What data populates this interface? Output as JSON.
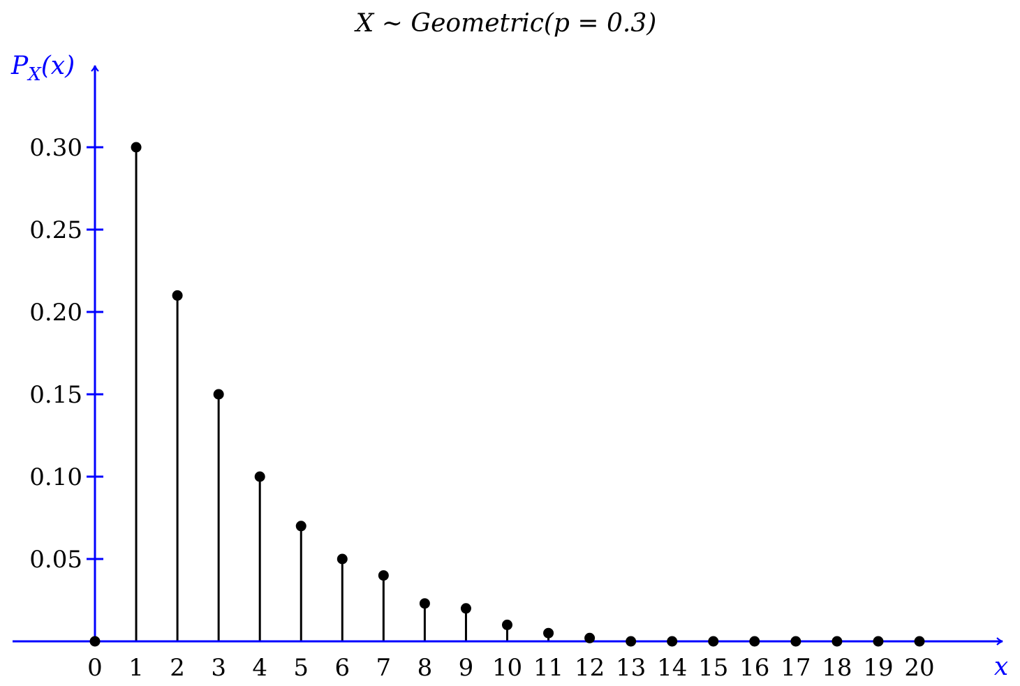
{
  "chart_data": {
    "type": "stem",
    "title": "X ∼ Geometric(p = 0.3)",
    "xlabel": "x",
    "ylabel": "P_X(x)",
    "ylabel_main": "P",
    "ylabel_sub": "X",
    "ylabel_arg": "(x)",
    "x": [
      0,
      1,
      2,
      3,
      4,
      5,
      6,
      7,
      8,
      9,
      10,
      11,
      12,
      13,
      14,
      15,
      16,
      17,
      18,
      19,
      20
    ],
    "values": [
      0,
      0.3,
      0.21,
      0.15,
      0.1,
      0.07,
      0.05,
      0.04,
      0.023,
      0.02,
      0.01,
      0.005,
      0.002,
      0,
      0,
      0,
      0,
      0,
      0,
      0,
      0
    ],
    "x_tick_labels": [
      "0",
      "1",
      "2",
      "3",
      "4",
      "5",
      "6",
      "7",
      "8",
      "9",
      "10",
      "11",
      "12",
      "13",
      "14",
      "15",
      "16",
      "17",
      "18",
      "19",
      "20"
    ],
    "y_ticks": [
      0.05,
      0.1,
      0.15,
      0.2,
      0.25,
      0.3
    ],
    "y_tick_labels": [
      "0.05",
      "0.10",
      "0.15",
      "0.20",
      "0.25",
      "0.30"
    ],
    "xlim": [
      0,
      20
    ],
    "ylim": [
      0,
      0.3
    ],
    "grid": false,
    "legend": "none",
    "colors": {
      "axis": "#0000ff",
      "stem": "#000000",
      "marker": "#000000",
      "text": "#000000"
    }
  }
}
